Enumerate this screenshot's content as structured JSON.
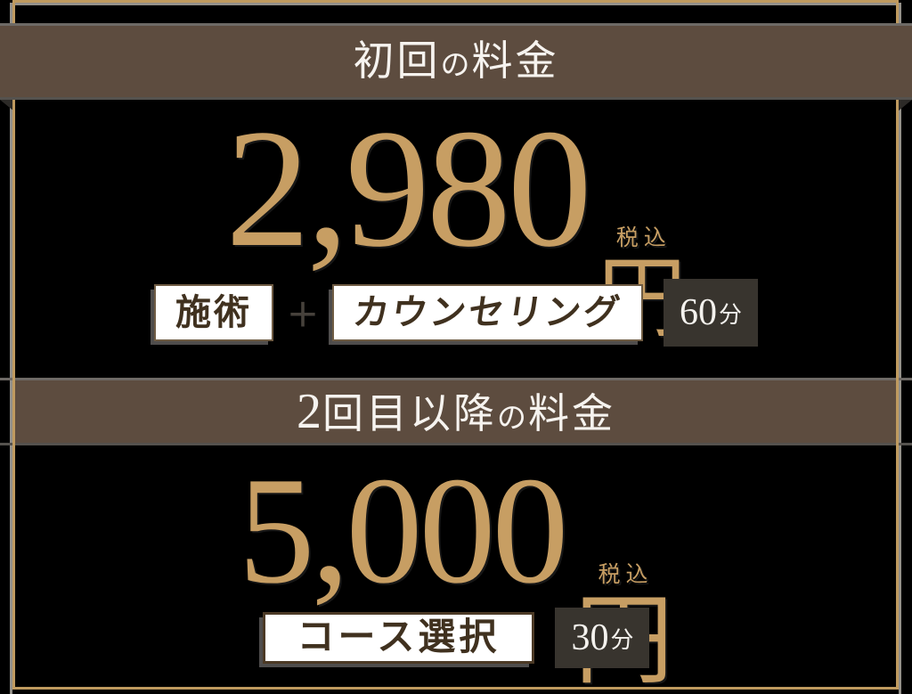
{
  "theme": {
    "background": "#000000",
    "frame_gold": "#bf9a5f",
    "frame_gray": "#93908a",
    "bar_background": "#5d4c3f",
    "price_gold": "#c79e63",
    "header_text": "#f6f3ef",
    "label_text": "#40311f",
    "dark_badge_background": "#38342e",
    "dark_badge_text": "#f4f2ee"
  },
  "first_section": {
    "header": {
      "main1": "初回",
      "particle": "の",
      "main2": "料金"
    },
    "price": {
      "amount": "2,980",
      "tax_note": "税込",
      "unit": "円"
    },
    "badges": {
      "treatment": "施術",
      "plus": "＋",
      "counseling": "カウンセリング",
      "duration_value": "60",
      "duration_unit": "分"
    }
  },
  "second_section": {
    "header": {
      "num": "2",
      "main1": "回目以降",
      "particle": "の",
      "main2": "料金"
    },
    "price": {
      "amount": "5,000",
      "tax_note": "税込",
      "unit": "円"
    },
    "badges": {
      "course": "コース選択",
      "duration_value": "30",
      "duration_unit": "分"
    }
  }
}
